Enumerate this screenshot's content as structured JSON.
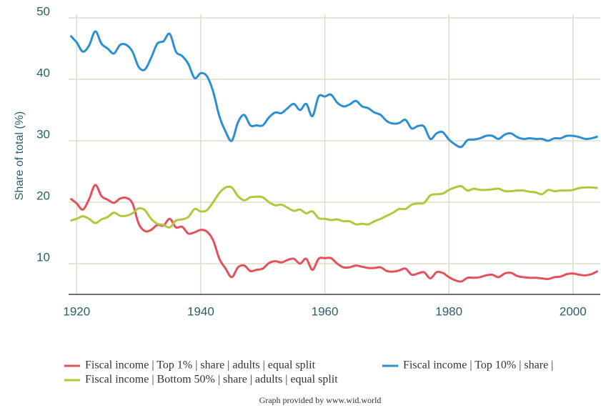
{
  "chart_data": {
    "type": "line",
    "y_label": "Share of total (%)",
    "source": "Graph provided by www.wid.world",
    "x": [
      1919,
      1920,
      1921,
      1922,
      1923,
      1924,
      1925,
      1926,
      1927,
      1928,
      1929,
      1930,
      1931,
      1932,
      1933,
      1934,
      1935,
      1936,
      1937,
      1938,
      1939,
      1940,
      1941,
      1942,
      1943,
      1944,
      1945,
      1946,
      1947,
      1948,
      1949,
      1950,
      1951,
      1952,
      1953,
      1954,
      1955,
      1956,
      1957,
      1958,
      1959,
      1960,
      1961,
      1962,
      1963,
      1964,
      1965,
      1966,
      1967,
      1968,
      1969,
      1970,
      1971,
      1972,
      1973,
      1974,
      1975,
      1976,
      1977,
      1978,
      1979,
      1980,
      1981,
      1982,
      1983,
      1984,
      1985,
      1986,
      1987,
      1988,
      1989,
      1990,
      1991,
      1992,
      1993,
      1994,
      1995,
      1996,
      1997,
      1998,
      1999,
      2000,
      2001,
      2002,
      2003,
      2004
    ],
    "series": [
      {
        "name": "Fiscal income | Top 1% | share | adults | equal split",
        "color": "#e5505c",
        "values": [
          20.6,
          19.8,
          18.8,
          20.5,
          22.8,
          21,
          20.4,
          19.9,
          20.6,
          20.7,
          19.8,
          16.5,
          15.3,
          15.5,
          16.3,
          16.2,
          17.3,
          15.9,
          16,
          14.9,
          15.1,
          15.5,
          15.2,
          13.8,
          10.8,
          9.2,
          7.8,
          9.4,
          9.7,
          8.8,
          9,
          9.2,
          10.1,
          10.4,
          10.2,
          10.6,
          10.8,
          10,
          10.8,
          9,
          10.8,
          10.9,
          10.9,
          10,
          9.4,
          9.4,
          9.7,
          9.5,
          9.3,
          9.3,
          9.4,
          8.8,
          8.7,
          8.9,
          9.2,
          8.2,
          8.4,
          8.6,
          7.6,
          8.6,
          8.5,
          7.8,
          7.3,
          7.1,
          7.7,
          7.7,
          7.8,
          8.1,
          8.2,
          7.8,
          8.4,
          8.5,
          8,
          7.8,
          7.7,
          7.7,
          7.6,
          7.5,
          7.8,
          7.9,
          8.3,
          8.4,
          8.2,
          8.1,
          8.3,
          8.8
        ]
      },
      {
        "name": "Fiscal income | Top 10% | share |",
        "color": "#2b8fd4",
        "values": [
          47.1,
          46,
          44.5,
          45.5,
          47.8,
          45.8,
          45,
          44.2,
          45.6,
          45.6,
          44.5,
          42,
          41.6,
          43.5,
          45.8,
          46.2,
          47.4,
          44.5,
          43.8,
          42.5,
          40.2,
          41,
          40.5,
          38,
          34,
          31.5,
          30,
          33,
          34.2,
          32.5,
          32.5,
          32.5,
          33.8,
          34.6,
          34.5,
          35.3,
          36,
          35,
          36,
          34,
          37.2,
          37.2,
          37.5,
          36.2,
          35.6,
          35.9,
          36.5,
          35.6,
          35.3,
          34.6,
          34.2,
          33.2,
          32.8,
          32.9,
          33.4,
          32,
          32.4,
          32.3,
          30.3,
          31.2,
          31.4,
          30.2,
          29.4,
          29,
          30.1,
          30.2,
          30.4,
          30.8,
          30.8,
          30.3,
          31,
          31.2,
          30.6,
          30.3,
          30.4,
          30.3,
          30.3,
          30,
          30.4,
          30.4,
          30.8,
          30.8,
          30.6,
          30.3,
          30.4,
          30.7
        ]
      },
      {
        "name": "Fiscal income | Bottom 50% | share | adults | equal split",
        "color": "#b2c83a",
        "values": [
          17,
          17.3,
          17.7,
          17.3,
          16.6,
          17.2,
          17.6,
          18.3,
          17.8,
          17.8,
          18.2,
          19,
          18.7,
          17.3,
          16.5,
          16.3,
          15.9,
          17,
          17.2,
          17.6,
          18.9,
          18.5,
          18.7,
          20,
          21.5,
          22.4,
          22.4,
          21,
          20.3,
          20.8,
          20.9,
          20.8,
          20,
          19.5,
          19.6,
          19.1,
          18.6,
          18.8,
          18.2,
          18.5,
          17.4,
          17.3,
          17.1,
          17.2,
          16.9,
          16.9,
          16.4,
          16.5,
          16.4,
          16.9,
          17.3,
          17.8,
          18.3,
          18.9,
          18.9,
          19.6,
          19.8,
          19.9,
          21.1,
          21.3,
          21.4,
          22,
          22.4,
          22.6,
          21.9,
          22.2,
          22,
          22,
          22.1,
          22.2,
          21.8,
          21.8,
          21.9,
          21.9,
          21.7,
          21.6,
          21.3,
          22,
          21.8,
          21.9,
          21.9,
          22,
          22.3,
          22.4,
          22.4,
          22.3
        ]
      }
    ],
    "xlim": [
      1918.7,
      2004.4
    ],
    "xticks": [
      1920,
      1940,
      1960,
      1980,
      2000
    ],
    "ylim": [
      5,
      50
    ],
    "yticks": [
      10,
      20,
      30,
      40,
      50
    ],
    "grid": true
  }
}
